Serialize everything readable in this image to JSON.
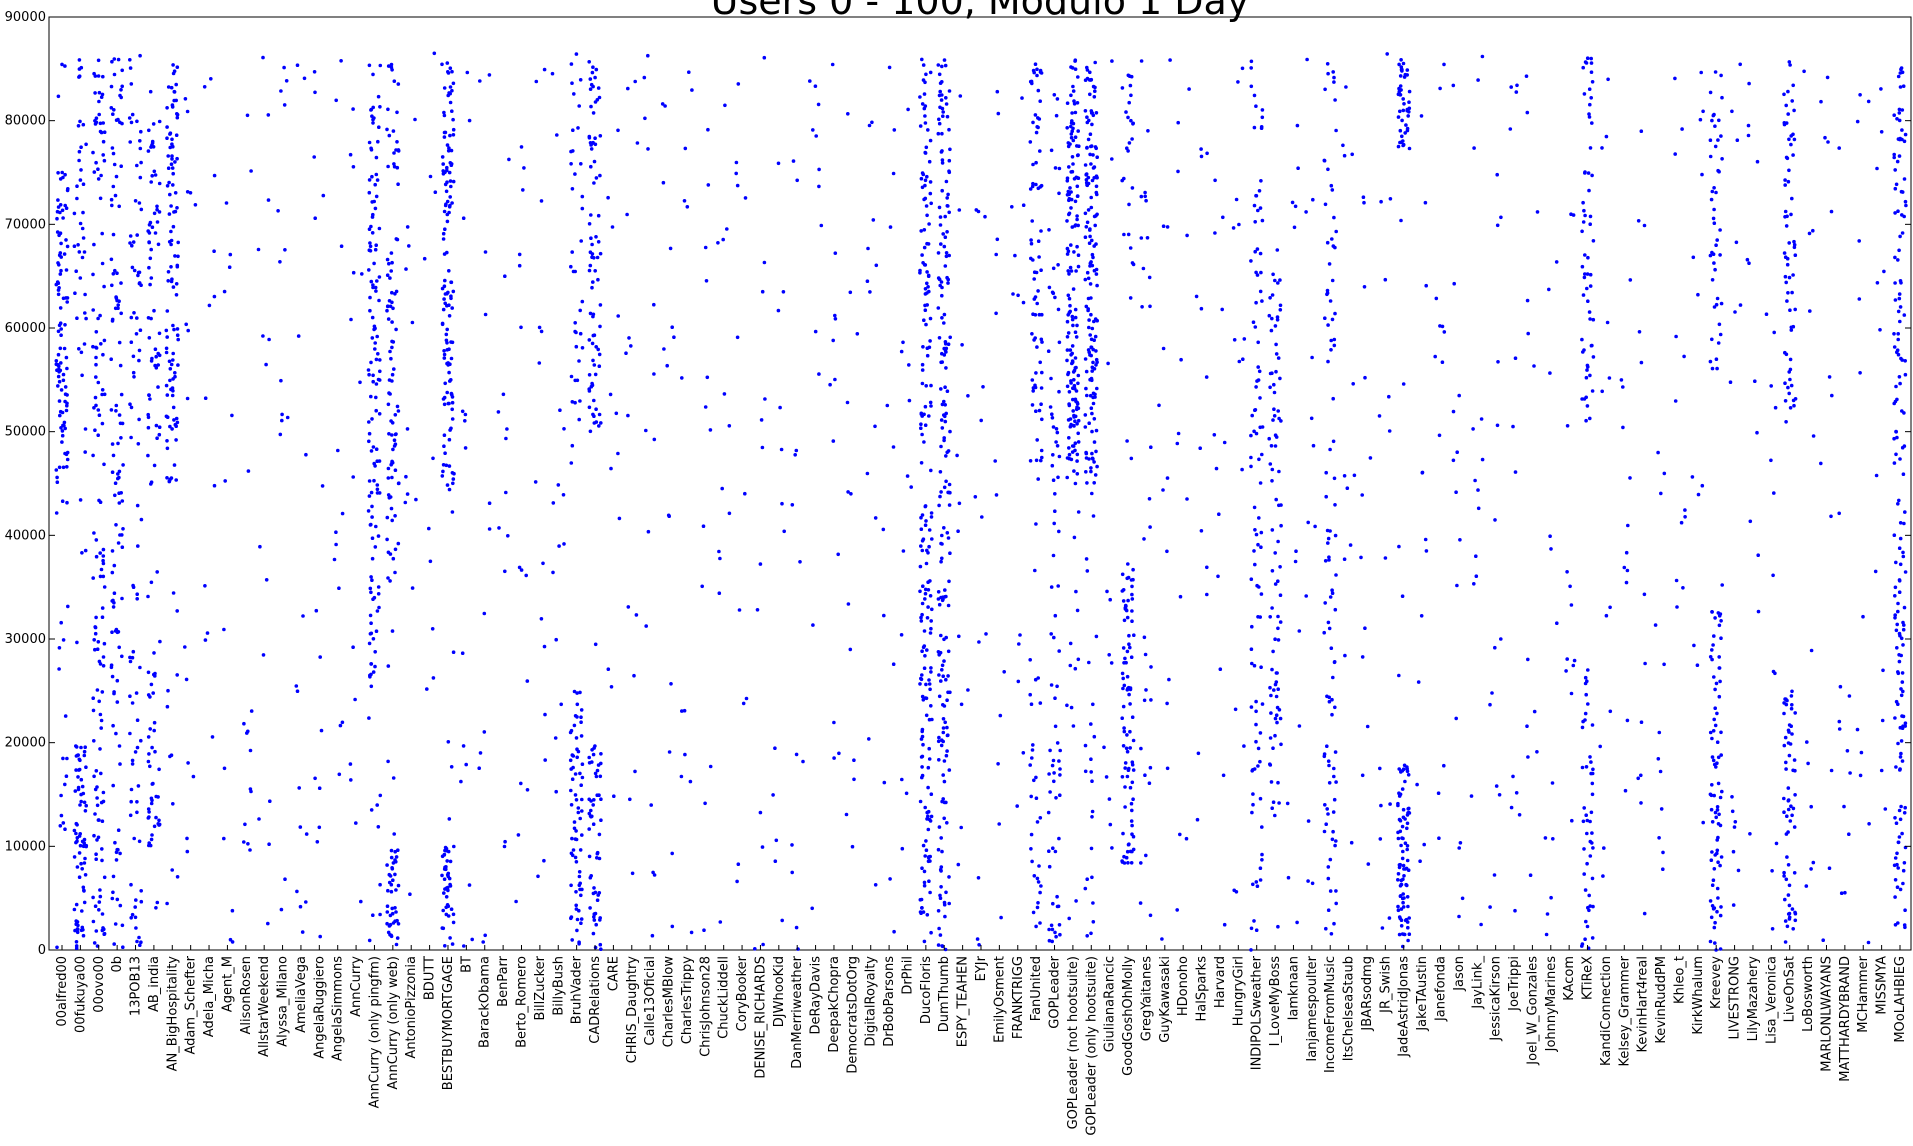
{
  "chart_data": {
    "type": "scatter",
    "title": "Users 0 - 100, Modulo 1 Day",
    "xlabel": "",
    "ylabel": "",
    "ylim": [
      0,
      90000
    ],
    "yticks": [
      0,
      10000,
      20000,
      30000,
      40000,
      50000,
      60000,
      70000,
      80000,
      90000
    ],
    "ytick_labels": [
      "0",
      "10000",
      "20000",
      "30000",
      "40000",
      "50000",
      "60000",
      "70000",
      "80000",
      "90000"
    ],
    "grid": false,
    "legend": "none",
    "point_color": "#0000ff",
    "categories": [
      "00alfred00",
      "00fukuya00",
      "00ovo00",
      "0b",
      "13POB13",
      "AB_india",
      "AN_BigHospitality",
      "Adam_Schefter",
      "Adela_Micha",
      "Agent_M",
      "AlisonRosen",
      "AllstarWeekend",
      "Alyssa_Milano",
      "AmeliaVega",
      "AngelaRuggiero",
      "AngelaSimmons",
      "AnnCurry",
      "AnnCurry (only pingfm)",
      "AnnCurry (only web)",
      "AntonioPizzonia",
      "BDUTT",
      "BESTBUYMORTGAGE",
      "BT",
      "BarackObama",
      "BenParr",
      "Berto_Romero",
      "BillZucker",
      "BillyBush",
      "BruhVader",
      "CADRelations",
      "CARE",
      "CHRIS_Daughtry",
      "Calle13Oficial",
      "CharlesMBlow",
      "CharlesTrippy",
      "ChrisJohnson28",
      "ChuckLiddell",
      "CoryBooker",
      "DENISE_RICHARDS",
      "DJWhooKid",
      "DanMerriweather",
      "DeRayDavis",
      "DeepakChopra",
      "DemocratsDotOrg",
      "DigitalRoyalty",
      "DrBobParsons",
      "DrPhil",
      "DucoFloris",
      "DumThumb",
      "ESPY_TEAHEN",
      "EYJr",
      "EmilyOsment",
      "FRANKTRIGG",
      "FanUnited",
      "GOPLeader",
      "GOPLeader (not hootsuite)",
      "GOPLeader (only hootsuite)",
      "GiulianaRancic",
      "GoodGoshOhMolly",
      "GregYaitanes",
      "GuyKawasaki",
      "HDonoho",
      "HalSparks",
      "Harvard",
      "HungryGirl",
      "INDIPOLSweather",
      "I_LoveMyBoss",
      "Iamknaan",
      "Ianjamespoulter",
      "IncomeFromMusic",
      "ItsChelseaStaub",
      "JBARsodmg",
      "JR_Swish",
      "JadeAstridJonas",
      "JakeTAustin",
      "Janefonda",
      "Jason",
      "JayLink_",
      "JessicaKirson",
      "JoeTrippi",
      "Joel_W_Gonzales",
      "JohnnyMarines",
      "KAcom",
      "KTiReX",
      "KandiConnection",
      "Kelsey_Grammer",
      "KevinHart4real",
      "KevinRuddPM",
      "Khleo_t",
      "KirkWhalum",
      "Kreevey",
      "LIVESTRONG",
      "LilyMazahery",
      "Lisa_Veronica",
      "LiveOnSat",
      "LoBosworth",
      "MARLONLWAYANS",
      "MATTHARDYBRAND",
      "MCHammer",
      "MISSMYA",
      "MOoLAHBIEG"
    ],
    "series": [
      {
        "density": [
          120,
          120,
          140,
          120,
          90,
          110,
          120,
          14,
          12,
          12,
          14,
          14,
          14,
          14,
          14,
          12,
          14,
          140,
          140,
          12,
          10,
          180,
          14,
          12,
          12,
          14,
          14,
          14,
          110,
          140,
          12,
          14,
          14,
          14,
          12,
          12,
          12,
          12,
          12,
          12,
          12,
          12,
          12,
          12,
          12,
          12,
          12,
          200,
          200,
          12,
          12,
          12,
          12,
          110,
          80,
          180,
          180,
          12,
          120,
          30,
          12,
          12,
          12,
          12,
          14,
          100,
          90,
          12,
          12,
          100,
          12,
          12,
          14,
          140,
          12,
          12,
          14,
          14,
          14,
          12,
          12,
          12,
          12,
          110,
          12,
          12,
          12,
          12,
          12,
          12,
          130,
          14,
          12,
          12,
          130,
          12,
          12,
          12,
          12,
          12,
          170
        ],
        "clusters": [
          {
            "category": "00alfred00",
            "y": [
              45000,
              75000
            ],
            "weight": 0.7
          },
          {
            "category": "00fukuya00",
            "y": [
              0,
              20000
            ],
            "weight": 0.6
          },
          {
            "category": "00fukuya00",
            "y": [
              55000,
              86000
            ],
            "weight": 0.2
          },
          {
            "category": "00ovo00",
            "y": [
              0,
              86000
            ],
            "weight": 0.8
          },
          {
            "category": "0b",
            "y": [
              0,
              86000
            ],
            "weight": 0.8
          },
          {
            "category": "AB_india",
            "y": [
              45000,
              80000
            ],
            "weight": 0.5
          },
          {
            "category": "AB_india",
            "y": [
              10000,
              27000
            ],
            "weight": 0.4
          },
          {
            "category": "AN_BigHospitality",
            "y": [
              45000,
              86000
            ],
            "weight": 0.8
          },
          {
            "category": "AnnCurry (only pingfm)",
            "y": [
              25000,
              86000
            ],
            "weight": 0.7
          },
          {
            "category": "AnnCurry (only web)",
            "y": [
              35000,
              86000
            ],
            "weight": 0.6
          },
          {
            "category": "AnnCurry (only web)",
            "y": [
              0,
              10000
            ],
            "weight": 0.3
          },
          {
            "category": "BESTBUYMORTGAGE",
            "y": [
              44000,
              86000
            ],
            "weight": 0.75
          },
          {
            "category": "BESTBUYMORTGAGE",
            "y": [
              0,
              10000
            ],
            "weight": 0.2
          },
          {
            "category": "BruhVader",
            "y": [
              0,
              25000
            ],
            "weight": 0.6
          },
          {
            "category": "BruhVader",
            "y": [
              48000,
              86000
            ],
            "weight": 0.3
          },
          {
            "category": "CADRelations",
            "y": [
              0,
              20000
            ],
            "weight": 0.4
          },
          {
            "category": "CADRelations",
            "y": [
              50000,
              86000
            ],
            "weight": 0.55
          },
          {
            "category": "DucoFloris",
            "y": [
              0,
              86000
            ],
            "weight": 0.9
          },
          {
            "category": "DumThumb",
            "y": [
              0,
              86000
            ],
            "weight": 0.9
          },
          {
            "category": "FanUnited",
            "y": [
              45000,
              86000
            ],
            "weight": 0.7
          },
          {
            "category": "FanUnited",
            "y": [
              0,
              30000
            ],
            "weight": 0.25
          },
          {
            "category": "GOPLeader",
            "y": [
              0,
              86000
            ],
            "weight": 0.6
          },
          {
            "category": "GOPLeader (not hootsuite)",
            "y": [
              45000,
              86000
            ],
            "weight": 0.85
          },
          {
            "category": "GOPLeader (only hootsuite)",
            "y": [
              45000,
              86000
            ],
            "weight": 0.85
          },
          {
            "category": "GoodGoshOhMolly",
            "y": [
              8000,
              37000
            ],
            "weight": 0.75
          },
          {
            "category": "GoodGoshOhMolly",
            "y": [
              65000,
              86000
            ],
            "weight": 0.2
          },
          {
            "category": "INDIPOLSweather",
            "y": [
              0,
              86000
            ],
            "weight": 0.9
          },
          {
            "category": "I_LoveMyBoss",
            "y": [
              12000,
              66000
            ],
            "weight": 0.9
          },
          {
            "category": "IncomeFromMusic",
            "y": [
              0,
              86000
            ],
            "weight": 0.9
          },
          {
            "category": "JadeAstridJonas",
            "y": [
              0,
              18000
            ],
            "weight": 0.6
          },
          {
            "category": "JadeAstridJonas",
            "y": [
              77000,
              86000
            ],
            "weight": 0.35
          },
          {
            "category": "KTiReX",
            "y": [
              51000,
              86000
            ],
            "weight": 0.55
          },
          {
            "category": "KTiReX",
            "y": [
              0,
              28000
            ],
            "weight": 0.4
          },
          {
            "category": "Kreevey",
            "y": [
              0,
              33000
            ],
            "weight": 0.6
          },
          {
            "category": "Kreevey",
            "y": [
              55000,
              86000
            ],
            "weight": 0.35
          },
          {
            "category": "LiveOnSat",
            "y": [
              0,
              25000
            ],
            "weight": 0.4
          },
          {
            "category": "LiveOnSat",
            "y": [
              50000,
              86000
            ],
            "weight": 0.55
          },
          {
            "category": "MOoLAHBIEG",
            "y": [
              0,
              86000
            ],
            "weight": 0.95
          }
        ]
      }
    ]
  }
}
